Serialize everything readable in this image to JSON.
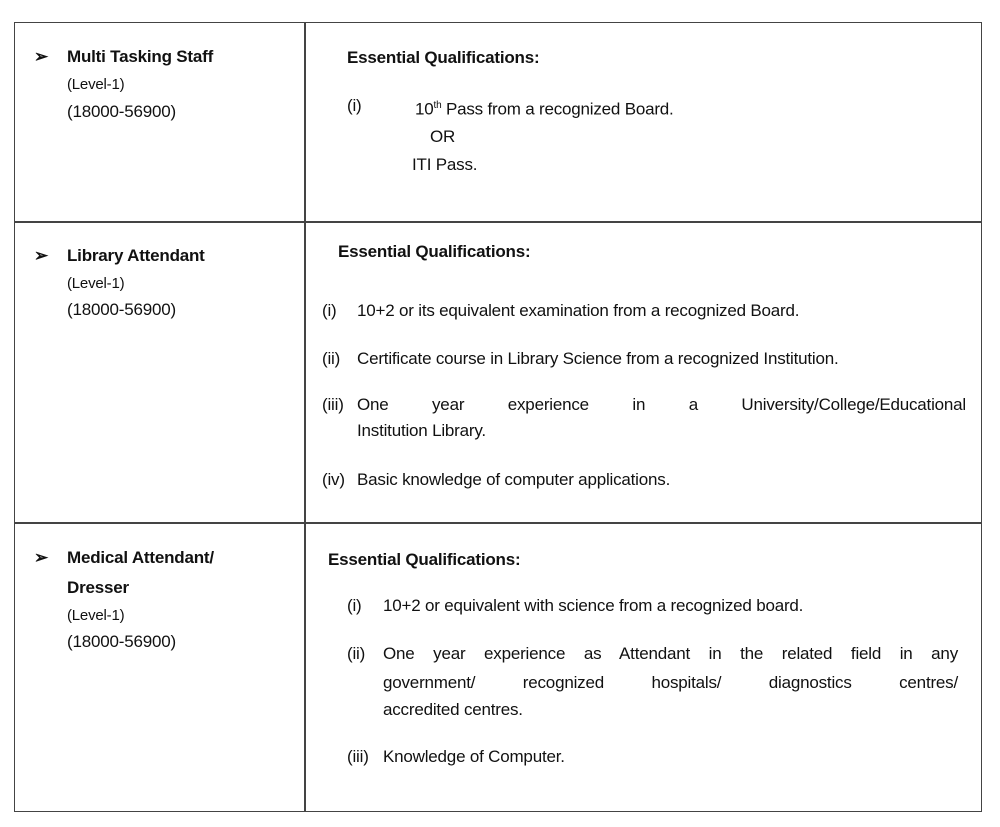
{
  "rows": [
    {
      "post": "Multi Tasking Staff",
      "level": "(Level-1)",
      "pay": "(18000-56900)",
      "heading": "Essential Qualifications:",
      "items": [
        {
          "num": "(i)",
          "pre": "10",
          "sup": "th",
          "text": " Pass from a recognized Board."
        }
      ],
      "or": "OR",
      "alt": "ITI Pass."
    },
    {
      "post": "Library Attendant",
      "level": "(Level-1)",
      "pay": "(18000-56900)",
      "heading": "Essential Qualifications:",
      "items": [
        {
          "num": "(i)",
          "text": "10+2 or its equivalent examination from a recognized Board."
        },
        {
          "num": "(ii)",
          "text": "Certificate course in Library Science from a recognized Institution."
        },
        {
          "num": "(iii)",
          "text": "One year experience in a University/College/Educational",
          "text2": "Institution Library."
        },
        {
          "num": "(iv)",
          "text": "Basic knowledge of computer applications."
        }
      ]
    },
    {
      "post": "Medical Attendant/",
      "post2": "Dresser",
      "level": "(Level-1)",
      "pay": "(18000-56900)",
      "heading": "Essential Qualifications:",
      "items": [
        {
          "num": "(i)",
          "text": "10+2 or equivalent with science from a recognized board."
        },
        {
          "num": "(ii)",
          "text": "One year experience as Attendant in the related field in any",
          "text2": "government/ recognized hospitals/ diagnostics centres/",
          "text3": "accredited centres."
        },
        {
          "num": "(iii)",
          "text": "Knowledge of Computer."
        }
      ]
    }
  ],
  "bullet_icon": "arrowhead-bullet"
}
